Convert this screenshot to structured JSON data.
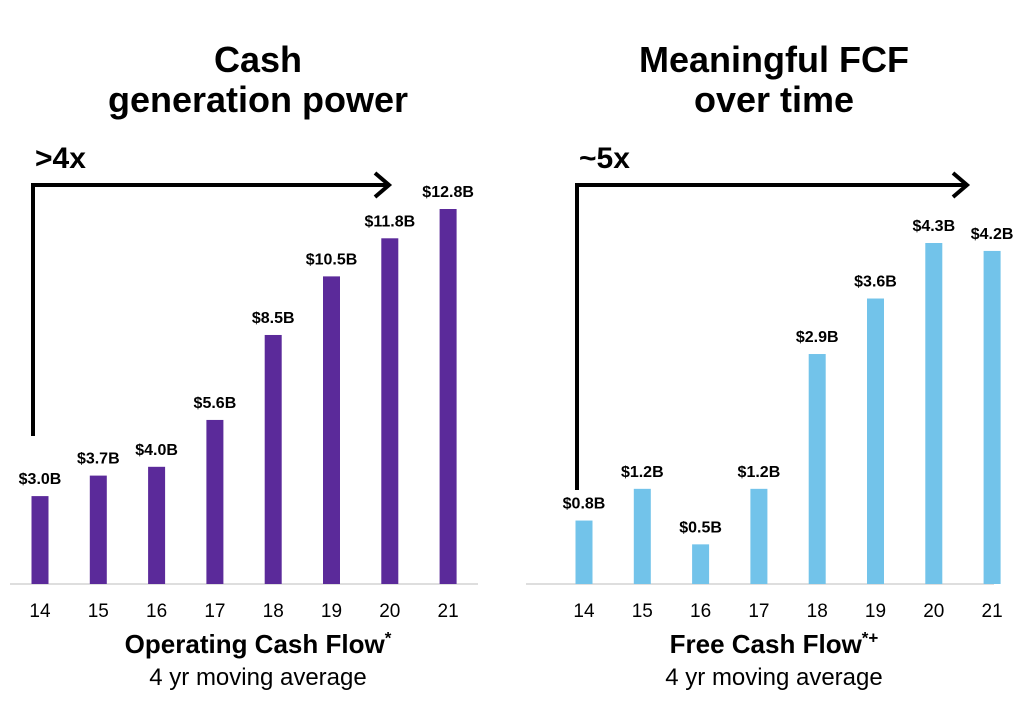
{
  "chart_data": [
    {
      "type": "bar",
      "title": [
        "Cash",
        "generation power"
      ],
      "growth_label": ">4x",
      "categories": [
        "14",
        "15",
        "16",
        "17",
        "18",
        "19",
        "20",
        "21"
      ],
      "values": [
        3.0,
        3.7,
        4.0,
        5.6,
        8.5,
        10.5,
        11.8,
        12.8
      ],
      "data_labels": [
        "$3.0B",
        "$3.7B",
        "$4.0B",
        "$5.6B",
        "$8.5B",
        "$10.5B",
        "$11.8B",
        "$12.8B"
      ],
      "caption": "Operating Cash Flow",
      "caption_marks": "*",
      "subcaption": "4 yr moving average",
      "color": "#5b2a9a",
      "grid": false,
      "ylim": [
        0,
        12.8
      ]
    },
    {
      "type": "bar",
      "title": [
        "Meaningful FCF",
        "over time"
      ],
      "growth_label": "~5x",
      "categories": [
        "14",
        "15",
        "16",
        "17",
        "18",
        "19",
        "20",
        "21"
      ],
      "values": [
        0.8,
        1.2,
        0.5,
        1.2,
        2.9,
        3.6,
        4.3,
        4.2
      ],
      "data_labels": [
        "$0.8B",
        "$1.2B",
        "$0.5B",
        "$1.2B",
        "$2.9B",
        "$3.6B",
        "$4.3B",
        "$4.2B"
      ],
      "caption": "Free Cash Flow",
      "caption_marks": "*+",
      "subcaption": "4 yr moving average",
      "color": "#72c3ea",
      "grid": false,
      "ylim": [
        0,
        4.3
      ]
    }
  ]
}
